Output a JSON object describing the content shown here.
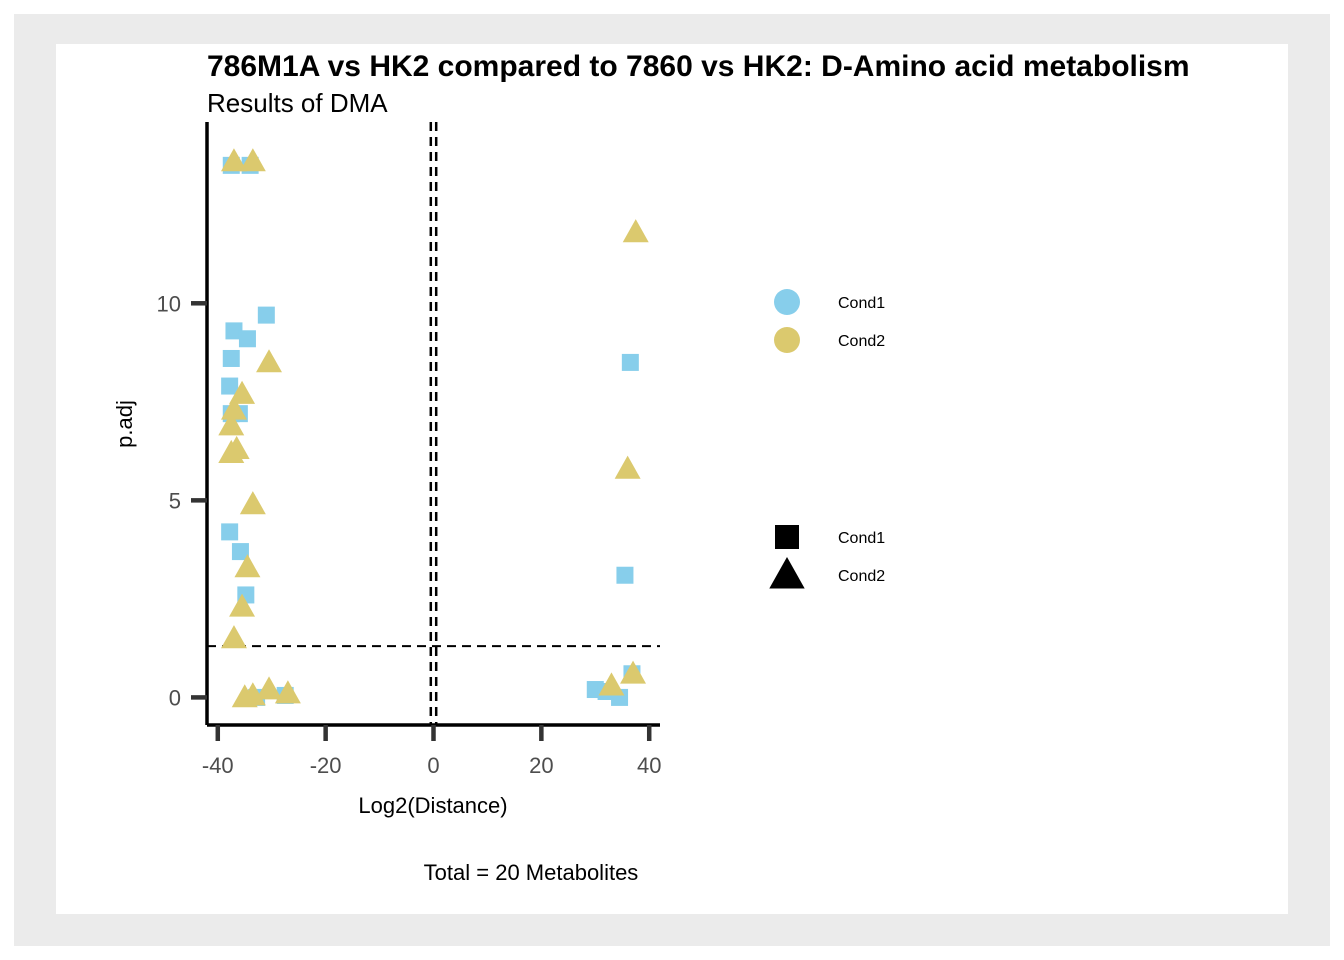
{
  "chart_data": {
    "type": "scatter",
    "title": "786M1A vs HK2 compared to 7860 vs HK2: D-Amino acid metabolism",
    "subtitle": "Results of DMA",
    "xlabel": "Log2(Distance)",
    "ylabel": "p.adj",
    "caption": "Total = 20 Metabolites",
    "xlim": [
      -42,
      42
    ],
    "ylim": [
      -0.7,
      14.6
    ],
    "xticks": [
      -40,
      -20,
      0,
      20,
      40
    ],
    "yticks": [
      0,
      5,
      10
    ],
    "vlines": [
      -0.5,
      0.5
    ],
    "hline": 1.3,
    "grid": false,
    "colors": {
      "Cond1": "#87ceeb",
      "Cond2": "#dbc96e"
    },
    "legend_color": {
      "position": "right",
      "entries": [
        "Cond1",
        "Cond2"
      ]
    },
    "legend_shape": {
      "position": "right",
      "entries": [
        "Cond1",
        "Cond2"
      ],
      "shapes": [
        "square",
        "triangle"
      ]
    },
    "series": [
      {
        "color_key": "Cond1",
        "shape": "square",
        "points": [
          [
            -37.5,
            13.5
          ],
          [
            -34,
            13.5
          ],
          [
            -31,
            9.7
          ],
          [
            -37,
            9.3
          ],
          [
            -34.5,
            9.1
          ],
          [
            -37.5,
            8.6
          ],
          [
            -37.8,
            7.9
          ],
          [
            -36,
            7.2
          ],
          [
            -37.5,
            7.2
          ],
          [
            -37.8,
            4.2
          ],
          [
            -35.8,
            3.7
          ],
          [
            -34.8,
            2.6
          ],
          [
            -32.8,
            0.0
          ],
          [
            -27.5,
            0.05
          ],
          [
            36.5,
            8.5
          ],
          [
            35.5,
            3.1
          ],
          [
            36.8,
            0.6
          ],
          [
            30,
            0.2
          ],
          [
            32,
            0.15
          ],
          [
            34.5,
            0.0
          ]
        ]
      },
      {
        "color_key": "Cond2",
        "shape": "triangle",
        "points": [
          [
            -37,
            13.6
          ],
          [
            -33.5,
            13.6
          ],
          [
            37.5,
            11.8
          ],
          [
            -30.5,
            8.5
          ],
          [
            -35.5,
            7.7
          ],
          [
            -37,
            7.3
          ],
          [
            -37.5,
            6.9
          ],
          [
            -36.5,
            6.3
          ],
          [
            -37.5,
            6.2
          ],
          [
            -33.5,
            4.9
          ],
          [
            -34.5,
            3.3
          ],
          [
            -35.5,
            2.3
          ],
          [
            -37,
            1.5
          ],
          [
            -33.5,
            0.05
          ],
          [
            -30.5,
            0.2
          ],
          [
            -27,
            0.1
          ],
          [
            36,
            5.8
          ],
          [
            33,
            0.3
          ],
          [
            37,
            0.6
          ],
          [
            -35,
            0.0
          ]
        ]
      }
    ]
  }
}
